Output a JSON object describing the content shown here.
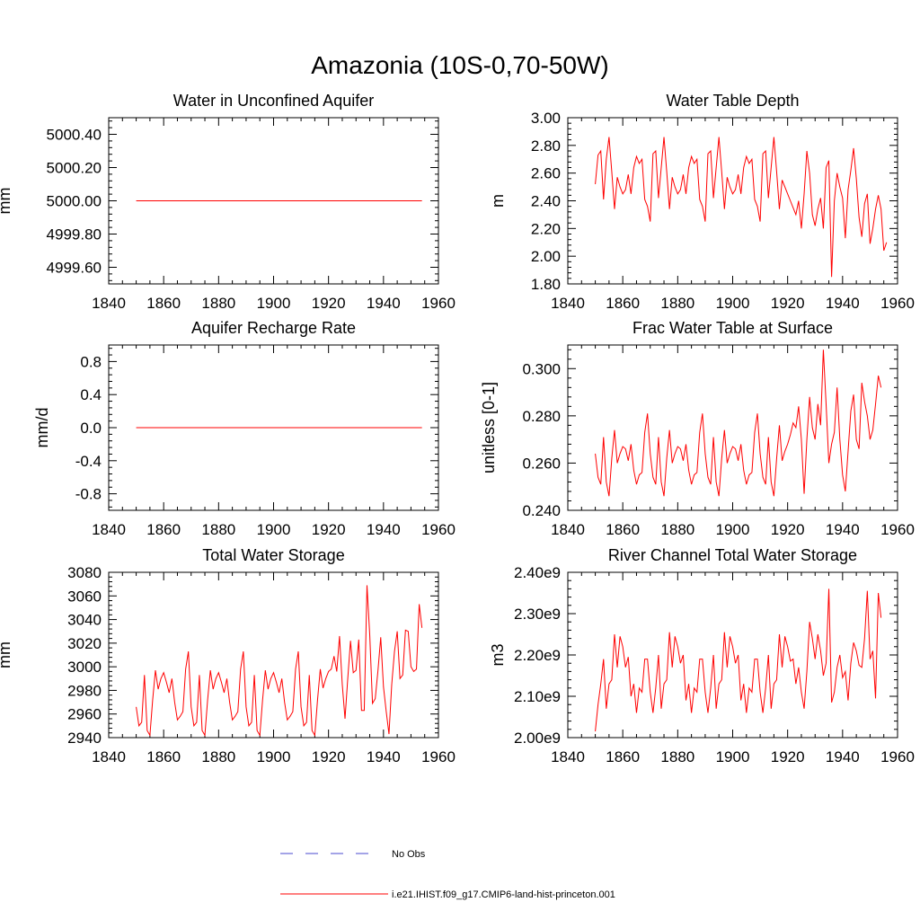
{
  "title": "Amazonia (10S-0,70-50W)",
  "legend": {
    "placement": "bottom-center",
    "items": [
      {
        "label": "No Obs",
        "color": "#4a4acf",
        "dashed": true
      },
      {
        "label": "i.e21.IHIST.f09_g17.CMIP6-land-hist-princeton.001",
        "color": "#ff0000",
        "dashed": false
      }
    ]
  },
  "chart_data": [
    {
      "type": "line",
      "title": "Water in Unconfined Aquifer",
      "ylabel": "mm",
      "xlim": [
        1840,
        1960
      ],
      "ylim": [
        4999.5,
        5000.5
      ],
      "xticks": [
        "1840",
        "1860",
        "1880",
        "1900",
        "1920",
        "1940",
        "1960"
      ],
      "yticks": [
        {
          "v": 4999.6,
          "label": "4999.60"
        },
        {
          "v": 4999.8,
          "label": "4999.80"
        },
        {
          "v": 5000.0,
          "label": "5000.00"
        },
        {
          "v": 5000.2,
          "label": "5000.20"
        },
        {
          "v": 5000.4,
          "label": "5000.40"
        }
      ],
      "series": [
        {
          "color": "#ff0000",
          "x": [
            1850,
            1954
          ],
          "y": [
            5000.0,
            5000.0
          ]
        }
      ]
    },
    {
      "type": "line",
      "title": "Water Table Depth",
      "ylabel": "m",
      "xlim": [
        1840,
        1960
      ],
      "ylim": [
        1.8,
        3.0
      ],
      "xticks": [
        "1840",
        "1860",
        "1880",
        "1900",
        "1920",
        "1940",
        "1960"
      ],
      "yticks": [
        {
          "v": 1.8,
          "label": "1.80"
        },
        {
          "v": 2.0,
          "label": "2.00"
        },
        {
          "v": 2.2,
          "label": "2.20"
        },
        {
          "v": 2.4,
          "label": "2.40"
        },
        {
          "v": 2.6,
          "label": "2.60"
        },
        {
          "v": 2.8,
          "label": "2.80"
        },
        {
          "v": 3.0,
          "label": "3.00"
        }
      ],
      "series": [
        {
          "color": "#ff0000",
          "x0": 1850,
          "dx": 1,
          "y": [
            2.52,
            2.73,
            2.76,
            2.41,
            2.7,
            2.86,
            2.61,
            2.34,
            2.57,
            2.5,
            2.45,
            2.48,
            2.59,
            2.45,
            2.64,
            2.72,
            2.67,
            2.7,
            2.41,
            2.36,
            2.25,
            2.74,
            2.76,
            2.42,
            2.64,
            2.86,
            2.61,
            2.34,
            2.57,
            2.5,
            2.45,
            2.48,
            2.59,
            2.45,
            2.64,
            2.72,
            2.67,
            2.7,
            2.41,
            2.36,
            2.25,
            2.74,
            2.76,
            2.42,
            2.64,
            2.86,
            2.61,
            2.34,
            2.57,
            2.5,
            2.45,
            2.48,
            2.59,
            2.45,
            2.64,
            2.72,
            2.67,
            2.7,
            2.41,
            2.36,
            2.25,
            2.74,
            2.76,
            2.42,
            2.64,
            2.86,
            2.61,
            2.34,
            2.55,
            2.5,
            2.45,
            2.4,
            2.35,
            2.3,
            2.4,
            2.2,
            2.45,
            2.76,
            2.6,
            2.3,
            2.22,
            2.34,
            2.42,
            2.2,
            2.64,
            2.69,
            1.85,
            2.4,
            2.6,
            2.5,
            2.42,
            2.13,
            2.48,
            2.62,
            2.78,
            2.56,
            2.28,
            2.14,
            2.38,
            2.45,
            2.09,
            2.2,
            2.34,
            2.44,
            2.34,
            2.04,
            2.1
          ]
        }
      ]
    },
    {
      "type": "line",
      "title": "Aquifer Recharge Rate",
      "ylabel": "mm/d",
      "xlim": [
        1840,
        1960
      ],
      "ylim": [
        -1.0,
        1.0
      ],
      "xticks": [
        "1840",
        "1860",
        "1880",
        "1900",
        "1920",
        "1940",
        "1960"
      ],
      "yticks": [
        {
          "v": -0.8,
          "label": "-0.8"
        },
        {
          "v": -0.4,
          "label": "-0.4"
        },
        {
          "v": 0.0,
          "label": "0.0"
        },
        {
          "v": 0.4,
          "label": "0.4"
        },
        {
          "v": 0.8,
          "label": "0.8"
        }
      ],
      "series": [
        {
          "color": "#ff0000",
          "x": [
            1850,
            1954
          ],
          "y": [
            0.0,
            0.0
          ]
        }
      ]
    },
    {
      "type": "line",
      "title": "Frac Water Table at Surface",
      "ylabel": "unitless [0-1]",
      "xlim": [
        1840,
        1960
      ],
      "ylim": [
        0.24,
        0.31
      ],
      "xticks": [
        "1840",
        "1860",
        "1880",
        "1900",
        "1920",
        "1940",
        "1960"
      ],
      "yticks": [
        {
          "v": 0.24,
          "label": "0.240"
        },
        {
          "v": 0.26,
          "label": "0.260"
        },
        {
          "v": 0.28,
          "label": "0.280"
        },
        {
          "v": 0.3,
          "label": "0.300"
        }
      ],
      "series": [
        {
          "color": "#ff0000",
          "x0": 1850,
          "dx": 1,
          "y": [
            0.264,
            0.254,
            0.251,
            0.271,
            0.252,
            0.246,
            0.262,
            0.274,
            0.26,
            0.264,
            0.267,
            0.266,
            0.261,
            0.268,
            0.257,
            0.251,
            0.255,
            0.256,
            0.273,
            0.281,
            0.264,
            0.254,
            0.251,
            0.271,
            0.252,
            0.246,
            0.262,
            0.274,
            0.26,
            0.264,
            0.267,
            0.266,
            0.261,
            0.268,
            0.257,
            0.251,
            0.255,
            0.256,
            0.273,
            0.281,
            0.264,
            0.254,
            0.251,
            0.271,
            0.252,
            0.246,
            0.262,
            0.274,
            0.26,
            0.264,
            0.267,
            0.266,
            0.261,
            0.268,
            0.257,
            0.251,
            0.255,
            0.256,
            0.273,
            0.281,
            0.264,
            0.254,
            0.251,
            0.271,
            0.252,
            0.246,
            0.262,
            0.276,
            0.261,
            0.265,
            0.268,
            0.272,
            0.277,
            0.275,
            0.284,
            0.27,
            0.247,
            0.27,
            0.288,
            0.275,
            0.27,
            0.285,
            0.276,
            0.308,
            0.285,
            0.26,
            0.268,
            0.273,
            0.292,
            0.27,
            0.255,
            0.248,
            0.265,
            0.282,
            0.289,
            0.27,
            0.266,
            0.294,
            0.286,
            0.28,
            0.27,
            0.274,
            0.285,
            0.297,
            0.292
          ]
        }
      ]
    },
    {
      "type": "line",
      "title": "Total Water Storage",
      "ylabel": "mm",
      "xlim": [
        1840,
        1960
      ],
      "ylim": [
        2940,
        3080
      ],
      "xticks": [
        "1840",
        "1860",
        "1880",
        "1900",
        "1920",
        "1940",
        "1960"
      ],
      "yticks": [
        {
          "v": 2940,
          "label": "2940"
        },
        {
          "v": 2960,
          "label": "2960"
        },
        {
          "v": 2980,
          "label": "2980"
        },
        {
          "v": 3000,
          "label": "3000"
        },
        {
          "v": 3020,
          "label": "3020"
        },
        {
          "v": 3040,
          "label": "3040"
        },
        {
          "v": 3060,
          "label": "3060"
        },
        {
          "v": 3080,
          "label": "3080"
        }
      ],
      "series": [
        {
          "color": "#ff0000",
          "x0": 1850,
          "dx": 1,
          "y": [
            2966,
            2950,
            2953,
            2993,
            2946,
            2942,
            2972,
            2997,
            2981,
            2990,
            2995,
            2987,
            2978,
            2990,
            2970,
            2955,
            2958,
            2962,
            2998,
            3013,
            2966,
            2950,
            2953,
            2993,
            2946,
            2942,
            2972,
            2997,
            2981,
            2990,
            2995,
            2987,
            2978,
            2990,
            2970,
            2955,
            2958,
            2962,
            2998,
            3013,
            2966,
            2950,
            2953,
            2993,
            2946,
            2942,
            2972,
            2997,
            2981,
            2990,
            2995,
            2987,
            2978,
            2990,
            2970,
            2955,
            2958,
            2962,
            2998,
            3013,
            2966,
            2950,
            2953,
            2993,
            2946,
            2942,
            2972,
            2998,
            2982,
            2990,
            2996,
            2998,
            3009,
            2996,
            3026,
            2985,
            2956,
            2990,
            3022,
            2995,
            2997,
            3023,
            2963,
            2963,
            3069,
            3027,
            2969,
            2973,
            2997,
            3025,
            2983,
            2962,
            2943,
            2985,
            3013,
            3030,
            2990,
            2993,
            3031,
            3030,
            3000,
            2996,
            2998,
            3053,
            3033
          ]
        }
      ]
    },
    {
      "type": "line",
      "title": "River Channel Total Water Storage",
      "ylabel": "m3",
      "xlim": [
        1840,
        1960
      ],
      "ylim": [
        2000000000.0,
        2400000000.0
      ],
      "xticks": [
        "1840",
        "1860",
        "1880",
        "1900",
        "1920",
        "1940",
        "1960"
      ],
      "yticks": [
        {
          "v": 2000000000.0,
          "label": "2.00e9"
        },
        {
          "v": 2100000000.0,
          "label": "2.10e9"
        },
        {
          "v": 2200000000.0,
          "label": "2.20e9"
        },
        {
          "v": 2300000000.0,
          "label": "2.30e9"
        },
        {
          "v": 2400000000.0,
          "label": "2.40e9"
        }
      ],
      "series": [
        {
          "color": "#ff0000",
          "x0": 1850,
          "dx": 1,
          "y": [
            2015000000.0,
            2080000000.0,
            2130000000.0,
            2190000000.0,
            2070000000.0,
            2130000000.0,
            2140000000.0,
            2250000000.0,
            2170000000.0,
            2245000000.0,
            2220000000.0,
            2170000000.0,
            2195000000.0,
            2100000000.0,
            2130000000.0,
            2060000000.0,
            2120000000.0,
            2110000000.0,
            2190000000.0,
            2190000000.0,
            2110000000.0,
            2060000000.0,
            2120000000.0,
            2200000000.0,
            2070000000.0,
            2130000000.0,
            2140000000.0,
            2255000000.0,
            2170000000.0,
            2245000000.0,
            2220000000.0,
            2180000000.0,
            2200000000.0,
            2090000000.0,
            2130000000.0,
            2060000000.0,
            2120000000.0,
            2110000000.0,
            2190000000.0,
            2190000000.0,
            2110000000.0,
            2060000000.0,
            2120000000.0,
            2200000000.0,
            2070000000.0,
            2130000000.0,
            2140000000.0,
            2255000000.0,
            2170000000.0,
            2245000000.0,
            2220000000.0,
            2180000000.0,
            2200000000.0,
            2090000000.0,
            2130000000.0,
            2060000000.0,
            2120000000.0,
            2110000000.0,
            2190000000.0,
            2190000000.0,
            2110000000.0,
            2060000000.0,
            2120000000.0,
            2200000000.0,
            2070000000.0,
            2130000000.0,
            2140000000.0,
            2250000000.0,
            2170000000.0,
            2245000000.0,
            2220000000.0,
            2185000000.0,
            2190000000.0,
            2130000000.0,
            2170000000.0,
            2110000000.0,
            2070000000.0,
            2160000000.0,
            2280000000.0,
            2240000000.0,
            2190000000.0,
            2250000000.0,
            2210000000.0,
            2150000000.0,
            2180000000.0,
            2360000000.0,
            2085000000.0,
            2110000000.0,
            2170000000.0,
            2200000000.0,
            2145000000.0,
            2160000000.0,
            2090000000.0,
            2180000000.0,
            2230000000.0,
            2210000000.0,
            2175000000.0,
            2170000000.0,
            2240000000.0,
            2355000000.0,
            2190000000.0,
            2210000000.0,
            2095000000.0,
            2350000000.0,
            2290000000.0
          ]
        }
      ]
    }
  ]
}
